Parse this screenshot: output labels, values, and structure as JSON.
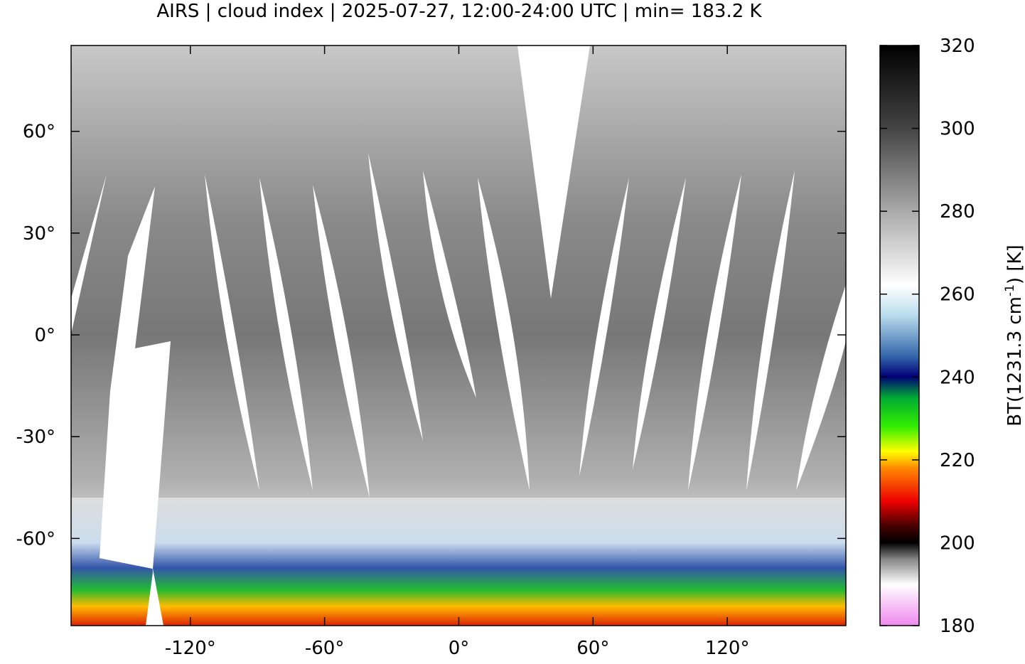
{
  "title": "AIRS | cloud index | 2025-07-27, 12:00-24:00 UTC | min= 183.2 K",
  "map": {
    "xlim": [
      -173.3,
      173.0
    ],
    "ylim": [
      -85.7,
      85.3
    ],
    "xticks": [
      {
        "value": -120,
        "label": "-120°"
      },
      {
        "value": -60,
        "label": "-60°"
      },
      {
        "value": 0,
        "label": "0°"
      },
      {
        "value": 60,
        "label": "60°"
      },
      {
        "value": 120,
        "label": "120°"
      }
    ],
    "yticks": [
      {
        "value": 60,
        "label": "60°"
      },
      {
        "value": 30,
        "label": "30°"
      },
      {
        "value": 0,
        "label": "0°"
      },
      {
        "value": -30,
        "label": "-30°"
      },
      {
        "value": -60,
        "label": "-60°"
      }
    ]
  },
  "colorbar": {
    "lim": [
      180,
      320
    ],
    "ticks": [
      180,
      200,
      220,
      240,
      260,
      280,
      300,
      320
    ],
    "label_prefix": "BT(1231.3 cm",
    "label_sup": "-1",
    "label_suffix": ") [K]"
  }
}
